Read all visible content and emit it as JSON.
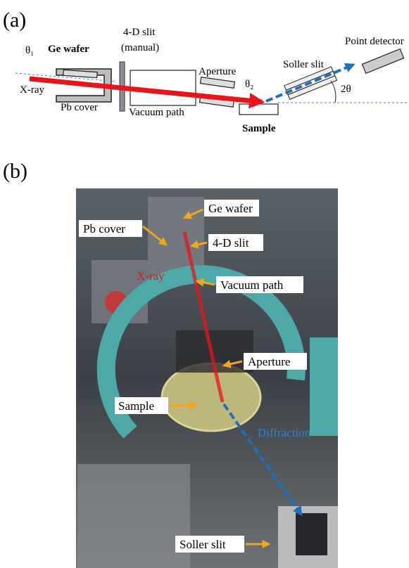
{
  "panel_a": {
    "label": "(a)",
    "labels": {
      "theta1": "θ₁",
      "ge_wafer": "Ge wafer",
      "slit_4d": "4-D slit",
      "manual": "(manual)",
      "point_detector": "Point detector",
      "aperture": "Aperture",
      "soller_slit": "Soller slit",
      "theta2": "θ₂",
      "two_theta": "2θ",
      "x_ray": "X-ray",
      "pb_cover": "Pb cover",
      "vacuum_path": "Vacuum path",
      "sample": "Sample"
    }
  },
  "panel_b": {
    "label": "(b)",
    "labels": {
      "ge_wafer": "Ge wafer",
      "pb_cover": "Pb cover",
      "slit_4d": "4-D slit",
      "x_ray": "X-ray",
      "vacuum_path": "Vacuum path",
      "aperture": "Aperture",
      "sample": "Sample",
      "diffraction": "Diffraction",
      "soller_slit": "Soller slit"
    }
  }
}
